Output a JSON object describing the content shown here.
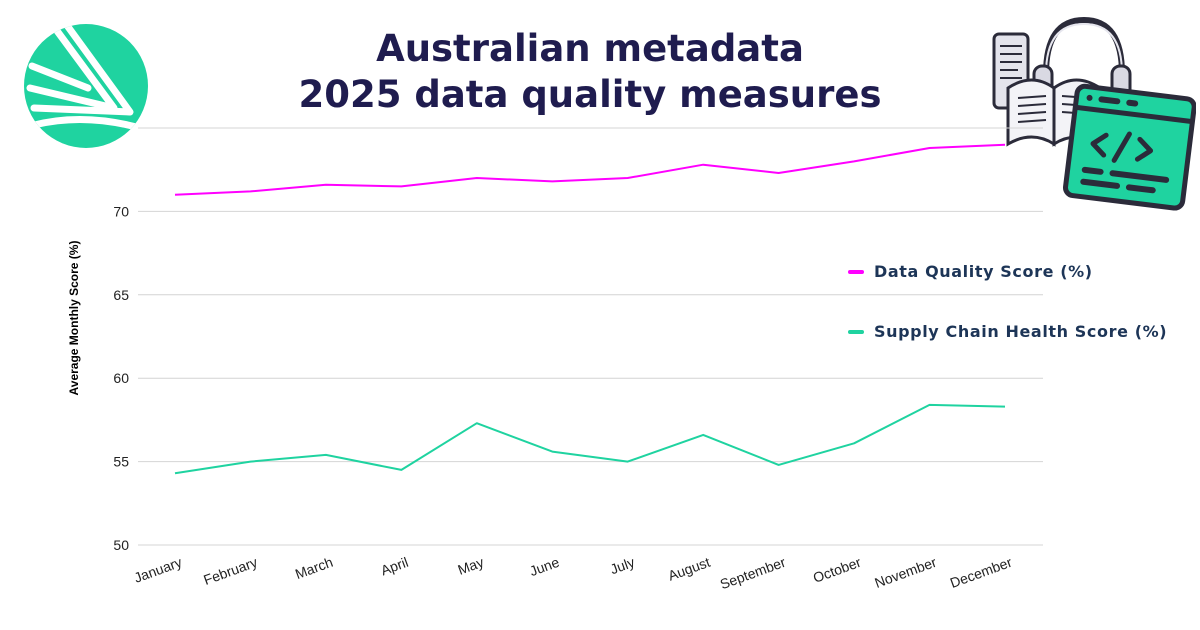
{
  "header": {
    "title_line1": "Australian metadata",
    "title_line2": "2025 data quality measures"
  },
  "logo": {
    "icon": "brand-chevron-logo",
    "color": "#1fd3a0"
  },
  "illustration": {
    "icon": "code-window-book-headphones-illustration",
    "accent": "#1fd3a0",
    "outline": "#2b2b3a"
  },
  "chart_data": {
    "type": "line",
    "title": "",
    "xlabel": "",
    "ylabel": "Average Monthly Score (%)",
    "categories": [
      "January",
      "February",
      "March",
      "April",
      "May",
      "June",
      "July",
      "August",
      "September",
      "October",
      "November",
      "December"
    ],
    "ylim": [
      50,
      75
    ],
    "yticks": [
      50,
      55,
      60,
      65,
      70
    ],
    "grid": true,
    "legend_position": "right",
    "series": [
      {
        "name": "Data Quality Score (%)",
        "color": "#ff00ff",
        "values": [
          71.0,
          71.2,
          71.6,
          71.5,
          72.0,
          71.8,
          72.0,
          72.8,
          72.3,
          73.0,
          73.8,
          74.0
        ]
      },
      {
        "name": "Supply Chain Health Score (%)",
        "color": "#1fd3a0",
        "values": [
          54.3,
          55.0,
          55.4,
          54.5,
          57.3,
          55.6,
          55.0,
          56.6,
          54.8,
          56.1,
          58.4,
          58.3
        ]
      }
    ]
  }
}
